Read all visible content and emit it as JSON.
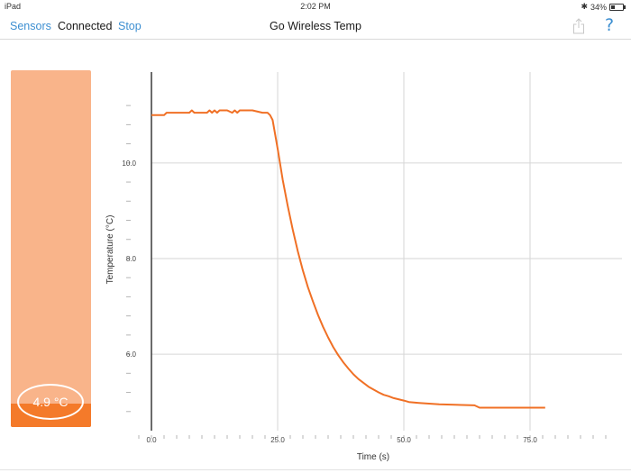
{
  "status_bar": {
    "device": "iPad",
    "time": "2:02 PM",
    "bluetooth_icon": "bluetooth-icon",
    "battery_label": "34%",
    "battery_level": 0.34
  },
  "nav": {
    "sensors_label": "Sensors",
    "connection_status": "Connected",
    "stop_label": "Stop",
    "title": "Go Wireless Temp",
    "share_icon": "share-icon",
    "help_label": "?"
  },
  "meter": {
    "reading": "4.9 °C",
    "colors": {
      "panel": "#f9b48a",
      "fill": "#f47a2a"
    }
  },
  "chart_data": {
    "type": "line",
    "xlabel": "Time (s)",
    "ylabel": "Temperature (°C)",
    "xlim": [
      0,
      90
    ],
    "ylim": [
      4.4,
      11.9
    ],
    "x_ticks": [
      {
        "value": 0,
        "label": "0.0"
      },
      {
        "value": 25,
        "label": "25.0"
      },
      {
        "value": 50,
        "label": "50.0"
      },
      {
        "value": 75,
        "label": "75.0"
      }
    ],
    "x_minor_step": 2.5,
    "y_ticks": [
      {
        "value": 6,
        "label": "6.0"
      },
      {
        "value": 8,
        "label": "8.0"
      },
      {
        "value": 10,
        "label": "10.0"
      }
    ],
    "y_minor_step": 0.4,
    "grid": true,
    "series_color": "#f07025",
    "series": [
      {
        "x": [
          0,
          2.5,
          3,
          5,
          7.5,
          8,
          8.5,
          10,
          11,
          11.5,
          12,
          12.5,
          13,
          13.5,
          14,
          15,
          16,
          16.5,
          17,
          17.5,
          18,
          20,
          22,
          23,
          23.5,
          24,
          25,
          26,
          27,
          28,
          29,
          30,
          31,
          32,
          33,
          34,
          35,
          36,
          37,
          38,
          39,
          40,
          41,
          42,
          43,
          44,
          45,
          46,
          47,
          48,
          50,
          51,
          53,
          57,
          64,
          65,
          66,
          75,
          78
        ],
        "y": [
          11.0,
          11.0,
          11.05,
          11.05,
          11.05,
          11.1,
          11.05,
          11.05,
          11.05,
          11.1,
          11.05,
          11.1,
          11.05,
          11.1,
          11.1,
          11.1,
          11.05,
          11.1,
          11.05,
          11.1,
          11.1,
          11.1,
          11.05,
          11.05,
          11.0,
          10.9,
          10.3,
          9.65,
          9.1,
          8.6,
          8.15,
          7.75,
          7.4,
          7.1,
          6.82,
          6.57,
          6.35,
          6.15,
          5.98,
          5.83,
          5.7,
          5.58,
          5.48,
          5.4,
          5.32,
          5.26,
          5.2,
          5.15,
          5.12,
          5.08,
          5.03,
          5.0,
          4.98,
          4.95,
          4.93,
          4.88,
          4.88,
          4.88,
          4.88
        ]
      }
    ]
  }
}
